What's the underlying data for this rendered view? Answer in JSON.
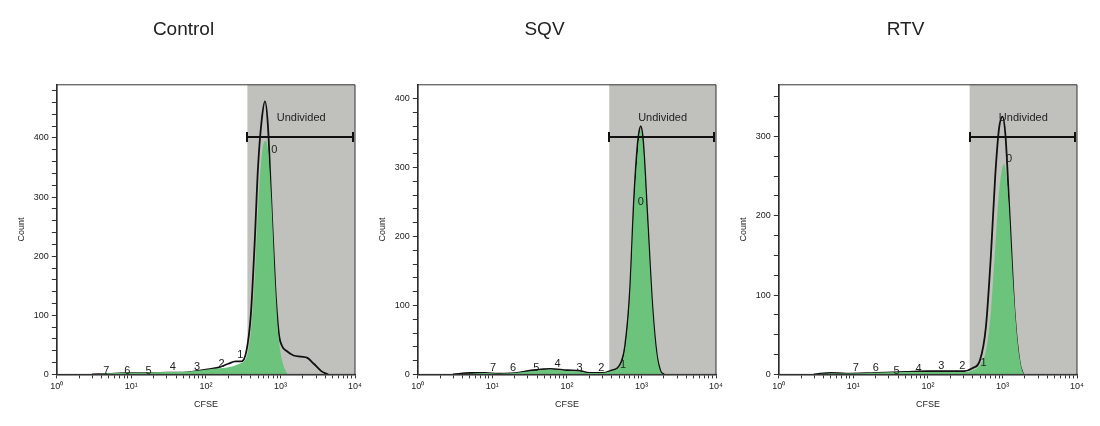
{
  "chart_data": [
    {
      "type": "area",
      "title": "Control",
      "xlabel": "CFSE",
      "ylabel": "Count",
      "log": "x",
      "grid": false,
      "legend": false,
      "marker": "none",
      "xlim": [
        1,
        10000
      ],
      "ylim": [
        0,
        490
      ],
      "xticks": [
        {
          "value": 1,
          "label": "10⁰"
        },
        {
          "value": 2,
          "label": null
        },
        {
          "value": 3,
          "label": null
        },
        {
          "value": 4,
          "label": null
        },
        {
          "value": 5,
          "label": null
        },
        {
          "value": 6,
          "label": null
        },
        {
          "value": 7,
          "label": null
        },
        {
          "value": 8,
          "label": null
        },
        {
          "value": 9,
          "label": null
        },
        {
          "value": 10,
          "label": "10¹"
        },
        {
          "value": 20,
          "label": null
        },
        {
          "value": 30,
          "label": null
        },
        {
          "value": 40,
          "label": null
        },
        {
          "value": 50,
          "label": null
        },
        {
          "value": 60,
          "label": null
        },
        {
          "value": 70,
          "label": null
        },
        {
          "value": 80,
          "label": null
        },
        {
          "value": 90,
          "label": null
        },
        {
          "value": 100,
          "label": "10²"
        },
        {
          "value": 200,
          "label": null
        },
        {
          "value": 300,
          "label": null
        },
        {
          "value": 400,
          "label": null
        },
        {
          "value": 500,
          "label": null
        },
        {
          "value": 600,
          "label": null
        },
        {
          "value": 700,
          "label": null
        },
        {
          "value": 800,
          "label": null
        },
        {
          "value": 900,
          "label": null
        },
        {
          "value": 1000,
          "label": "10³"
        },
        {
          "value": 2000,
          "label": null
        },
        {
          "value": 3000,
          "label": null
        },
        {
          "value": 4000,
          "label": null
        },
        {
          "value": 5000,
          "label": null
        },
        {
          "value": 6000,
          "label": null
        },
        {
          "value": 7000,
          "label": null
        },
        {
          "value": 8000,
          "label": null
        },
        {
          "value": 9000,
          "label": null
        },
        {
          "value": 10000,
          "label": "10⁴"
        }
      ],
      "yticks": [
        0,
        {
          "value": 20,
          "label": null
        },
        {
          "value": 40,
          "label": null
        },
        {
          "value": 60,
          "label": null
        },
        {
          "value": 80,
          "label": null
        },
        100,
        {
          "value": 120,
          "label": null
        },
        {
          "value": 140,
          "label": null
        },
        {
          "value": 160,
          "label": null
        },
        {
          "value": 180,
          "label": null
        },
        200,
        {
          "value": 220,
          "label": null
        },
        {
          "value": 240,
          "label": null
        },
        {
          "value": 260,
          "label": null
        },
        {
          "value": 280,
          "label": null
        },
        300,
        {
          "value": 320,
          "label": null
        },
        {
          "value": 340,
          "label": null
        },
        {
          "value": 360,
          "label": null
        },
        {
          "value": 380,
          "label": null
        },
        400,
        {
          "value": 420,
          "label": null
        },
        {
          "value": 440,
          "label": null
        },
        {
          "value": 460,
          "label": null
        },
        {
          "value": 480,
          "label": null
        }
      ],
      "bands": [
        {
          "axis": "x",
          "from": 360,
          "to": 10000,
          "color": "#c0c0bc",
          "label": "Undivided"
        }
      ],
      "series": [
        {
          "type": "area",
          "color": "#6cc47c",
          "x": [
            3,
            5,
            8,
            15,
            30,
            60,
            100,
            140,
            200,
            280,
            350,
            400,
            450,
            500,
            560,
            620,
            680,
            750,
            850,
            950,
            1100,
            1250
          ],
          "values": [
            0,
            2,
            3,
            3,
            4,
            5,
            8,
            10,
            12,
            18,
            30,
            70,
            160,
            280,
            370,
            395,
            380,
            300,
            150,
            60,
            15,
            0
          ]
        },
        {
          "type": "line",
          "color": "#111111",
          "x": [
            3,
            5,
            8,
            12,
            20,
            30,
            50,
            70,
            100,
            150,
            200,
            250,
            300,
            350,
            400,
            450,
            500,
            560,
            620,
            680,
            750,
            850,
            950,
            1050,
            1200,
            1500,
            1900,
            2300,
            2800,
            3500,
            4300
          ],
          "values": [
            0,
            1,
            2,
            2,
            2,
            3,
            3,
            5,
            8,
            12,
            18,
            22,
            22,
            40,
            100,
            220,
            350,
            430,
            462,
            420,
            300,
            150,
            70,
            48,
            40,
            32,
            30,
            28,
            18,
            6,
            0
          ]
        }
      ],
      "annotations": [
        {
          "text": "0",
          "x": 830,
          "y": 380
        },
        {
          "text": "1",
          "x": 290,
          "y": 33
        },
        {
          "text": "2",
          "x": 162,
          "y": 18
        },
        {
          "text": "3",
          "x": 76,
          "y": 13
        },
        {
          "text": "4",
          "x": 36,
          "y": 12
        },
        {
          "text": "5",
          "x": 17,
          "y": 6
        },
        {
          "text": "6",
          "x": 8.8,
          "y": 6
        },
        {
          "text": "7",
          "x": 4.6,
          "y": 6
        }
      ]
    },
    {
      "type": "area",
      "title": "SQV",
      "xlabel": "CFSE",
      "ylabel": "Count",
      "log": "x",
      "grid": false,
      "legend": false,
      "marker": "none",
      "xlim": [
        1,
        10000
      ],
      "ylim": [
        0,
        420
      ],
      "xticks": [
        {
          "value": 1,
          "label": "10⁰"
        },
        {
          "value": 2,
          "label": null
        },
        {
          "value": 3,
          "label": null
        },
        {
          "value": 4,
          "label": null
        },
        {
          "value": 5,
          "label": null
        },
        {
          "value": 6,
          "label": null
        },
        {
          "value": 7,
          "label": null
        },
        {
          "value": 8,
          "label": null
        },
        {
          "value": 9,
          "label": null
        },
        {
          "value": 10,
          "label": "10¹"
        },
        {
          "value": 20,
          "label": null
        },
        {
          "value": 30,
          "label": null
        },
        {
          "value": 40,
          "label": null
        },
        {
          "value": 50,
          "label": null
        },
        {
          "value": 60,
          "label": null
        },
        {
          "value": 70,
          "label": null
        },
        {
          "value": 80,
          "label": null
        },
        {
          "value": 90,
          "label": null
        },
        {
          "value": 100,
          "label": "10²"
        },
        {
          "value": 200,
          "label": null
        },
        {
          "value": 300,
          "label": null
        },
        {
          "value": 400,
          "label": null
        },
        {
          "value": 500,
          "label": null
        },
        {
          "value": 600,
          "label": null
        },
        {
          "value": 700,
          "label": null
        },
        {
          "value": 800,
          "label": null
        },
        {
          "value": 900,
          "label": null
        },
        {
          "value": 1000,
          "label": "10³"
        },
        {
          "value": 2000,
          "label": null
        },
        {
          "value": 3000,
          "label": null
        },
        {
          "value": 4000,
          "label": null
        },
        {
          "value": 5000,
          "label": null
        },
        {
          "value": 6000,
          "label": null
        },
        {
          "value": 7000,
          "label": null
        },
        {
          "value": 8000,
          "label": null
        },
        {
          "value": 9000,
          "label": null
        },
        {
          "value": 10000,
          "label": "10⁴"
        }
      ],
      "yticks": [
        0,
        {
          "value": 20,
          "label": null
        },
        {
          "value": 40,
          "label": null
        },
        {
          "value": 60,
          "label": null
        },
        {
          "value": 80,
          "label": null
        },
        100,
        {
          "value": 120,
          "label": null
        },
        {
          "value": 140,
          "label": null
        },
        {
          "value": 160,
          "label": null
        },
        {
          "value": 180,
          "label": null
        },
        200,
        {
          "value": 220,
          "label": null
        },
        {
          "value": 240,
          "label": null
        },
        {
          "value": 260,
          "label": null
        },
        {
          "value": 280,
          "label": null
        },
        300,
        {
          "value": 320,
          "label": null
        },
        {
          "value": 340,
          "label": null
        },
        {
          "value": 360,
          "label": null
        },
        {
          "value": 380,
          "label": null
        },
        400
      ],
      "bands": [
        {
          "axis": "x",
          "from": 370,
          "to": 10000,
          "color": "#c0c0bc",
          "label": "Undivided"
        }
      ],
      "series": [
        {
          "type": "area",
          "color": "#6cc47c",
          "x": [
            3,
            5,
            8,
            12,
            20,
            35,
            60,
            100,
            150,
            200,
            300,
            400,
            500,
            600,
            700,
            800,
            900,
            980,
            1050,
            1200,
            1400,
            1600,
            1800,
            2000
          ],
          "values": [
            0,
            1,
            2,
            1,
            2,
            5,
            7,
            5,
            4,
            2,
            2,
            5,
            10,
            35,
            110,
            245,
            325,
            355,
            330,
            220,
            95,
            28,
            4,
            0
          ]
        },
        {
          "type": "line",
          "color": "#111111",
          "x": [
            3,
            5,
            8,
            12,
            20,
            35,
            60,
            100,
            150,
            200,
            300,
            400,
            500,
            600,
            700,
            800,
            900,
            980,
            1050,
            1200,
            1400,
            1600,
            1800,
            2000
          ],
          "values": [
            0,
            2,
            2,
            1,
            2,
            6,
            8,
            6,
            5,
            2,
            2,
            6,
            12,
            40,
            120,
            260,
            340,
            360,
            340,
            230,
            100,
            30,
            5,
            0
          ]
        }
      ],
      "annotations": [
        {
          "text": "0",
          "x": 980,
          "y": 250
        },
        {
          "text": "1",
          "x": 565,
          "y": 14
        },
        {
          "text": "2",
          "x": 290,
          "y": 10
        },
        {
          "text": "3",
          "x": 148,
          "y": 10
        },
        {
          "text": "4",
          "x": 75,
          "y": 15
        },
        {
          "text": "5",
          "x": 39,
          "y": 9
        },
        {
          "text": "6",
          "x": 19,
          "y": 9
        },
        {
          "text": "7",
          "x": 10.2,
          "y": 10
        }
      ]
    },
    {
      "type": "area",
      "title": "RTV",
      "xlabel": "CFSE",
      "ylabel": "Count",
      "log": "x",
      "grid": false,
      "legend": false,
      "marker": "none",
      "xlim": [
        1,
        10000
      ],
      "ylim": [
        0,
        365
      ],
      "xticks": [
        {
          "value": 1,
          "label": "10⁰"
        },
        {
          "value": 2,
          "label": null
        },
        {
          "value": 3,
          "label": null
        },
        {
          "value": 4,
          "label": null
        },
        {
          "value": 5,
          "label": null
        },
        {
          "value": 6,
          "label": null
        },
        {
          "value": 7,
          "label": null
        },
        {
          "value": 8,
          "label": null
        },
        {
          "value": 9,
          "label": null
        },
        {
          "value": 10,
          "label": "10¹"
        },
        {
          "value": 20,
          "label": null
        },
        {
          "value": 30,
          "label": null
        },
        {
          "value": 40,
          "label": null
        },
        {
          "value": 50,
          "label": null
        },
        {
          "value": 60,
          "label": null
        },
        {
          "value": 70,
          "label": null
        },
        {
          "value": 80,
          "label": null
        },
        {
          "value": 90,
          "label": null
        },
        {
          "value": 100,
          "label": "10²"
        },
        {
          "value": 200,
          "label": null
        },
        {
          "value": 300,
          "label": null
        },
        {
          "value": 400,
          "label": null
        },
        {
          "value": 500,
          "label": null
        },
        {
          "value": 600,
          "label": null
        },
        {
          "value": 700,
          "label": null
        },
        {
          "value": 800,
          "label": null
        },
        {
          "value": 900,
          "label": null
        },
        {
          "value": 1000,
          "label": "10³"
        },
        {
          "value": 2000,
          "label": null
        },
        {
          "value": 3000,
          "label": null
        },
        {
          "value": 4000,
          "label": null
        },
        {
          "value": 5000,
          "label": null
        },
        {
          "value": 6000,
          "label": null
        },
        {
          "value": 7000,
          "label": null
        },
        {
          "value": 8000,
          "label": null
        },
        {
          "value": 9000,
          "label": null
        },
        {
          "value": 10000,
          "label": "10⁴"
        }
      ],
      "yticks": [
        0,
        {
          "value": 25,
          "label": null
        },
        {
          "value": 50,
          "label": null
        },
        {
          "value": 75,
          "label": null
        },
        100,
        {
          "value": 125,
          "label": null
        },
        {
          "value": 150,
          "label": null
        },
        {
          "value": 175,
          "label": null
        },
        200,
        {
          "value": 225,
          "label": null
        },
        {
          "value": 250,
          "label": null
        },
        {
          "value": 275,
          "label": null
        },
        300,
        {
          "value": 325,
          "label": null
        },
        {
          "value": 350,
          "label": null
        }
      ],
      "bands": [
        {
          "axis": "x",
          "from": 363,
          "to": 10000,
          "color": "#c0c0bc",
          "label": "Undivided"
        }
      ],
      "series": [
        {
          "type": "area",
          "color": "#6cc47c",
          "x": [
            3,
            5,
            8,
            20,
            50,
            100,
            200,
            300,
            400,
            500,
            600,
            700,
            800,
            900,
            1050,
            1200,
            1400,
            1600,
            1800,
            1950
          ],
          "values": [
            0,
            1,
            1,
            2,
            3,
            3,
            3,
            3,
            5,
            12,
            30,
            80,
            160,
            230,
            265,
            220,
            110,
            40,
            8,
            0
          ]
        },
        {
          "type": "line",
          "color": "#111111",
          "x": [
            3,
            5,
            8,
            20,
            50,
            100,
            200,
            300,
            400,
            500,
            600,
            700,
            800,
            900,
            1000,
            1100,
            1250,
            1450,
            1700,
            1900
          ],
          "values": [
            0,
            2,
            1,
            2,
            3,
            4,
            4,
            4,
            8,
            18,
            60,
            150,
            250,
            310,
            325,
            300,
            200,
            80,
            15,
            0
          ]
        }
      ],
      "annotations": [
        {
          "text": "0",
          "x": 1230,
          "y": 272
        },
        {
          "text": "1",
          "x": 560,
          "y": 14
        },
        {
          "text": "2",
          "x": 290,
          "y": 10
        },
        {
          "text": "3",
          "x": 151,
          "y": 10
        },
        {
          "text": "4",
          "x": 75,
          "y": 7
        },
        {
          "text": "5",
          "x": 38,
          "y": 4
        },
        {
          "text": "6",
          "x": 20,
          "y": 8
        },
        {
          "text": "7",
          "x": 10.8,
          "y": 8
        }
      ]
    }
  ]
}
